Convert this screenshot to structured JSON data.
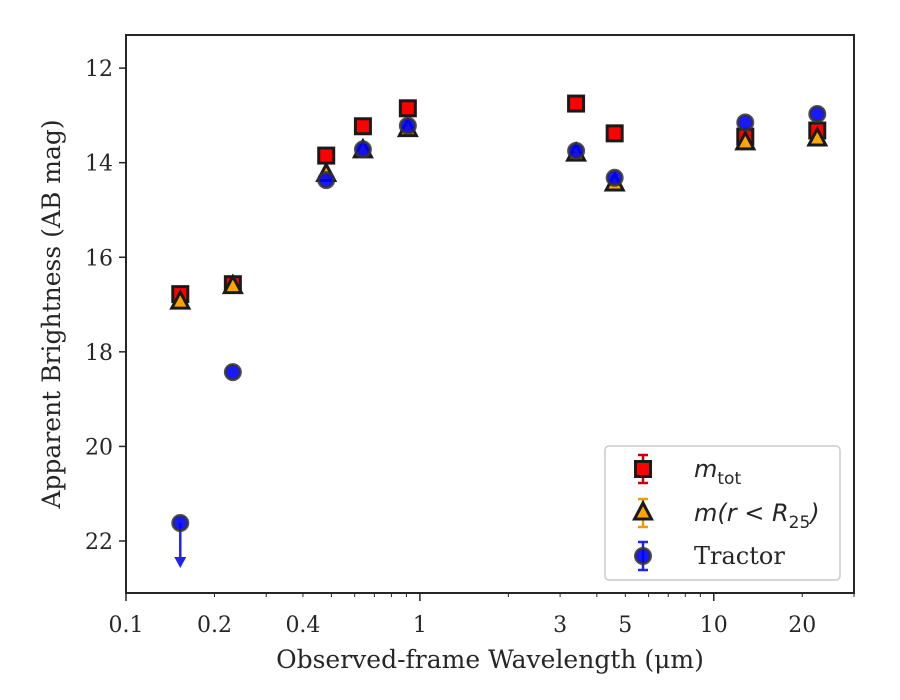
{
  "chart_data": {
    "type": "scatter",
    "xlabel": "Observed-frame Wavelength (μm)",
    "ylabel": "Apparent Brightness (AB mag)",
    "x_scale": "log",
    "xlim": [
      0.1,
      30
    ],
    "ylim": [
      23.1,
      11.3
    ],
    "y_inverted": true,
    "x_ticks": [
      {
        "value": 0.1,
        "label": "0.1"
      },
      {
        "value": 0.2,
        "label": "0.2"
      },
      {
        "value": 0.4,
        "label": "0.4"
      },
      {
        "value": 1,
        "label": "1"
      },
      {
        "value": 3,
        "label": "3"
      },
      {
        "value": 5,
        "label": "5"
      },
      {
        "value": 10,
        "label": "10"
      },
      {
        "value": 20,
        "label": "20"
      }
    ],
    "y_ticks": [
      12,
      14,
      16,
      18,
      20,
      22
    ],
    "grid": false,
    "legend_position": "bottom-right",
    "series": [
      {
        "name": "m_tot",
        "label_main": "m",
        "label_sub": "tot",
        "marker": "square",
        "color": "#ff0000",
        "edgecolor": "#1a1a1a",
        "points": [
          {
            "x": 0.153,
            "y": 16.78
          },
          {
            "x": 0.231,
            "y": 16.57
          },
          {
            "x": 0.48,
            "y": 13.85
          },
          {
            "x": 0.64,
            "y": 13.23
          },
          {
            "x": 0.91,
            "y": 12.85
          },
          {
            "x": 3.4,
            "y": 12.75
          },
          {
            "x": 4.6,
            "y": 13.38
          },
          {
            "x": 12.8,
            "y": 13.45
          },
          {
            "x": 22.5,
            "y": 13.32
          }
        ]
      },
      {
        "name": "m(r < R_25)",
        "label_main": "m(r < R",
        "label_sub": "25",
        "label_end": ")",
        "marker": "triangle",
        "color": "#ffa500",
        "edgecolor": "#1a1a1a",
        "points": [
          {
            "x": 0.153,
            "y": 16.95
          },
          {
            "x": 0.231,
            "y": 16.62
          },
          {
            "x": 0.48,
            "y": 14.25
          },
          {
            "x": 0.64,
            "y": 13.75
          },
          {
            "x": 0.91,
            "y": 13.3
          },
          {
            "x": 3.4,
            "y": 13.82
          },
          {
            "x": 4.6,
            "y": 14.45
          },
          {
            "x": 12.8,
            "y": 13.58
          },
          {
            "x": 22.5,
            "y": 13.5
          }
        ]
      },
      {
        "name": "Tractor",
        "label_main": "Tractor",
        "marker": "circle",
        "color": "#0000ff",
        "edgecolor": "#333333",
        "points": [
          {
            "x": 0.153,
            "y": 21.62,
            "upper_limit": true
          },
          {
            "x": 0.231,
            "y": 18.43
          },
          {
            "x": 0.48,
            "y": 14.37
          },
          {
            "x": 0.64,
            "y": 13.72
          },
          {
            "x": 0.91,
            "y": 13.22
          },
          {
            "x": 3.4,
            "y": 13.75
          },
          {
            "x": 4.6,
            "y": 14.32
          },
          {
            "x": 12.8,
            "y": 13.15
          },
          {
            "x": 22.5,
            "y": 12.97
          }
        ]
      }
    ]
  }
}
